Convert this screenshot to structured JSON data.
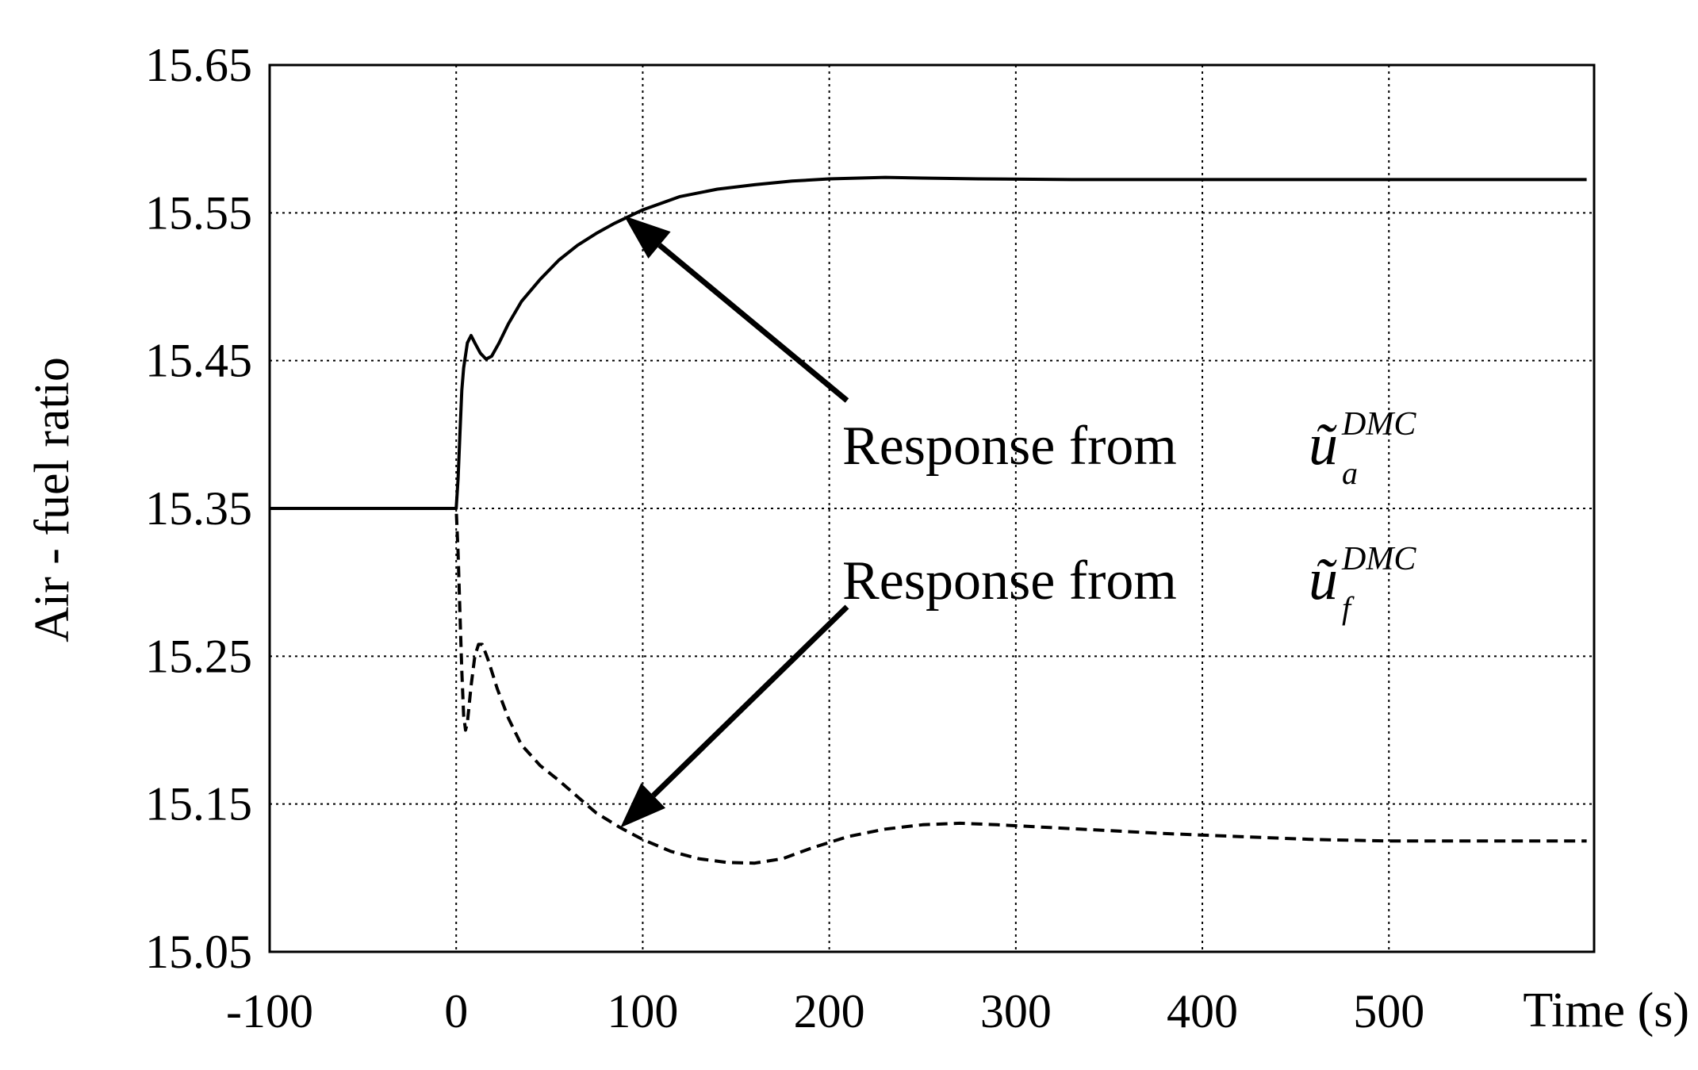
{
  "chart_data": {
    "type": "line",
    "title": "",
    "xlabel": "Time (s)",
    "ylabel": "Air - fuel ratio",
    "xlim": [
      -100,
      610
    ],
    "ylim": [
      15.05,
      15.65
    ],
    "x_ticks": [
      -100,
      0,
      100,
      200,
      300,
      400,
      500
    ],
    "x_tick_labels": [
      "-100",
      "0",
      "100",
      "200",
      "300",
      "400",
      "500"
    ],
    "y_ticks": [
      15.05,
      15.15,
      15.25,
      15.35,
      15.45,
      15.55,
      15.65
    ],
    "y_tick_labels": [
      "15.05",
      "15.15",
      "15.25",
      "15.35",
      "15.45",
      "15.55",
      "15.65"
    ],
    "grid": true,
    "series": [
      {
        "style": "solid",
        "color": "#000000",
        "points": [
          [
            -100,
            15.35
          ],
          [
            0,
            15.35
          ],
          [
            1,
            15.37
          ],
          [
            2,
            15.4
          ],
          [
            3,
            15.43
          ],
          [
            4,
            15.445
          ],
          [
            6,
            15.462
          ],
          [
            8,
            15.467
          ],
          [
            10,
            15.462
          ],
          [
            13,
            15.455
          ],
          [
            16,
            15.451
          ],
          [
            19,
            15.453
          ],
          [
            23,
            15.462
          ],
          [
            28,
            15.475
          ],
          [
            35,
            15.49
          ],
          [
            45,
            15.505
          ],
          [
            55,
            15.518
          ],
          [
            65,
            15.528
          ],
          [
            75,
            15.536
          ],
          [
            85,
            15.543
          ],
          [
            100,
            15.552
          ],
          [
            120,
            15.561
          ],
          [
            140,
            15.566
          ],
          [
            160,
            15.569
          ],
          [
            180,
            15.5715
          ],
          [
            200,
            15.573
          ],
          [
            230,
            15.574
          ],
          [
            250,
            15.5735
          ],
          [
            280,
            15.573
          ],
          [
            330,
            15.5725
          ],
          [
            400,
            15.5725
          ],
          [
            500,
            15.5725
          ],
          [
            606,
            15.5725
          ]
        ]
      },
      {
        "style": "dashed",
        "color": "#000000",
        "points": [
          [
            -100,
            15.35
          ],
          [
            0,
            15.35
          ],
          [
            1,
            15.32
          ],
          [
            2,
            15.28
          ],
          [
            3,
            15.24
          ],
          [
            4,
            15.21
          ],
          [
            5,
            15.2
          ],
          [
            6,
            15.205
          ],
          [
            8,
            15.23
          ],
          [
            10,
            15.25
          ],
          [
            12,
            15.258
          ],
          [
            14,
            15.258
          ],
          [
            17,
            15.248
          ],
          [
            22,
            15.228
          ],
          [
            28,
            15.208
          ],
          [
            35,
            15.19
          ],
          [
            45,
            15.176
          ],
          [
            55,
            15.166
          ],
          [
            65,
            15.155
          ],
          [
            75,
            15.144
          ],
          [
            88,
            15.134
          ],
          [
            100,
            15.126
          ],
          [
            115,
            15.118
          ],
          [
            130,
            15.113
          ],
          [
            145,
            15.1105
          ],
          [
            160,
            15.11
          ],
          [
            175,
            15.113
          ],
          [
            190,
            15.12
          ],
          [
            210,
            15.128
          ],
          [
            230,
            15.133
          ],
          [
            250,
            15.136
          ],
          [
            270,
            15.137
          ],
          [
            290,
            15.136
          ],
          [
            320,
            15.134
          ],
          [
            350,
            15.132
          ],
          [
            380,
            15.13
          ],
          [
            420,
            15.128
          ],
          [
            460,
            15.126
          ],
          [
            500,
            15.125
          ],
          [
            550,
            15.125
          ],
          [
            606,
            15.125
          ]
        ]
      }
    ],
    "annotations": [
      {
        "text": "Response from",
        "symbol": "ũ",
        "sub": "a",
        "sup": "DMC",
        "arrow_to": [
          90,
          15.548
        ]
      },
      {
        "text": "Response from",
        "symbol": "ũ",
        "sub": "f",
        "sup": "DMC",
        "arrow_to": [
          88,
          15.134
        ]
      }
    ]
  }
}
